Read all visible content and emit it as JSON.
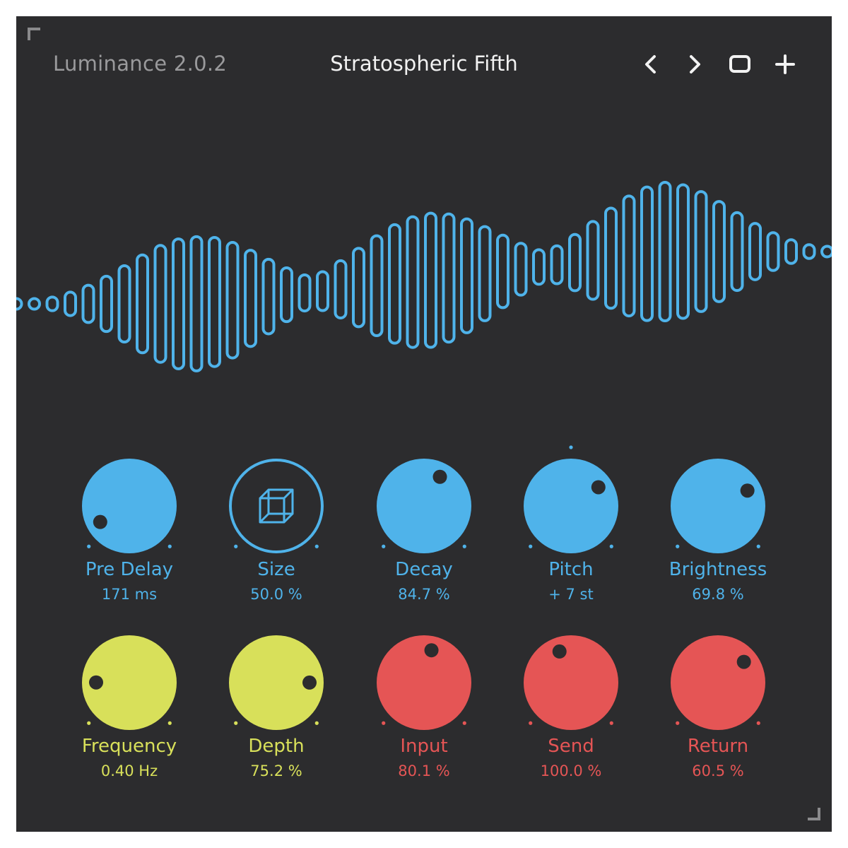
{
  "header": {
    "app_title": "Luminance 2.0.2",
    "preset_name": "Stratospheric Fifth"
  },
  "toolbar": {
    "prev_icon": "chevron-left-icon",
    "next_icon": "chevron-right-icon",
    "save_icon": "square-icon",
    "add_icon": "plus-icon"
  },
  "colors": {
    "background": "#2c2c2e",
    "blue": "#4fb3ea",
    "yellow": "#d8e05a",
    "red": "#e55555",
    "title_gray": "#9a9a9c",
    "preset_white": "#f2f2f2"
  },
  "knobs": [
    {
      "id": "pre-delay",
      "label": "Pre Delay",
      "value": "171 ms",
      "color": "blue",
      "level": 0.06,
      "style": "knob"
    },
    {
      "id": "size",
      "label": "Size",
      "value": "50.0 %",
      "color": "blue",
      "level": 0.5,
      "style": "cube"
    },
    {
      "id": "decay",
      "label": "Decay",
      "value": "84.7 %",
      "color": "blue",
      "level": 0.606,
      "style": "knob"
    },
    {
      "id": "pitch",
      "label": "Pitch",
      "value": "+ 7 st",
      "color": "blue",
      "level": 0.706,
      "style": "knob",
      "center_mark": true
    },
    {
      "id": "brightness",
      "label": "Brightness",
      "value": "69.8 %",
      "color": "blue",
      "level": 0.731,
      "style": "knob"
    },
    {
      "id": "frequency",
      "label": "Frequency",
      "value": "0.40 Hz",
      "color": "yellow",
      "level": 0.168,
      "style": "knob"
    },
    {
      "id": "depth",
      "label": "Depth",
      "value": "75.2 %",
      "color": "yellow",
      "level": 0.833,
      "style": "knob"
    },
    {
      "id": "input",
      "label": "Input",
      "value": "80.1 %",
      "color": "red",
      "level": 0.548,
      "style": "knob"
    },
    {
      "id": "send",
      "label": "Send",
      "value": "100.0 %",
      "color": "red",
      "level": 0.425,
      "style": "knob"
    },
    {
      "id": "return",
      "label": "Return",
      "value": "60.5 %",
      "color": "red",
      "level": 0.69,
      "style": "knob"
    }
  ]
}
